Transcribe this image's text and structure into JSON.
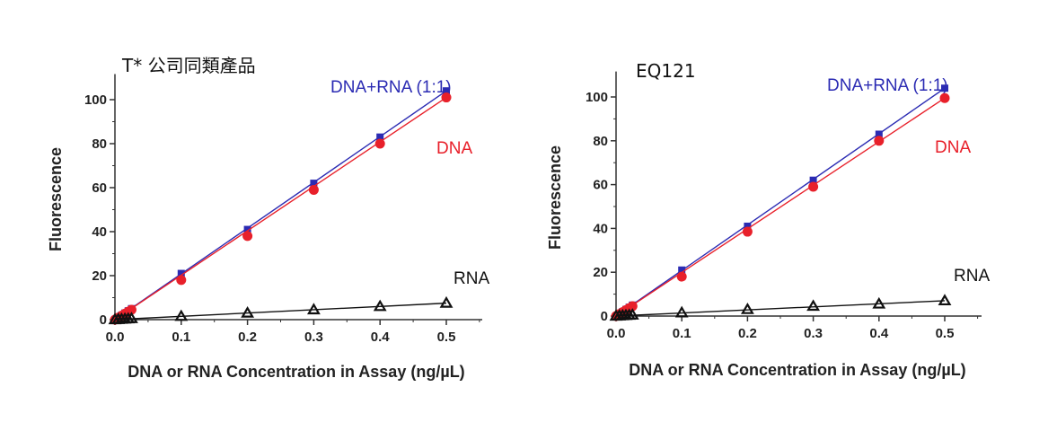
{
  "chart_data": [
    {
      "type": "line",
      "title": "T* 公司同類產品",
      "xlabel": "DNA or RNA Concentration in Assay (ng/µL)",
      "ylabel": "Fluorescence",
      "xlim": [
        0,
        0.55
      ],
      "ylim": [
        0,
        110
      ],
      "xticks": [
        "0.0",
        "0.1",
        "0.2",
        "0.3",
        "0.4",
        "0.5"
      ],
      "yticks": [
        "0",
        "20",
        "40",
        "60",
        "80",
        "100"
      ],
      "x": [
        0,
        0.005,
        0.01,
        0.015,
        0.02,
        0.025,
        0.1,
        0.2,
        0.3,
        0.4,
        0.5
      ],
      "series": [
        {
          "name": "DNA+RNA (1:1)",
          "color": "#2b2bb3",
          "marker": "square",
          "values": [
            0,
            1.0,
            2.0,
            3.0,
            4.0,
            5.0,
            21,
            41,
            62,
            83,
            104
          ]
        },
        {
          "name": "DNA",
          "color": "#e8202a",
          "marker": "circle",
          "values": [
            0,
            0.9,
            1.8,
            2.7,
            3.6,
            4.5,
            18,
            38,
            59,
            80,
            101
          ]
        },
        {
          "name": "RNA",
          "color": "#111111",
          "marker": "triangle",
          "values": [
            0,
            0.1,
            0.2,
            0.3,
            0.4,
            0.5,
            1.5,
            3,
            4.5,
            6,
            7.5
          ]
        }
      ]
    },
    {
      "type": "line",
      "title": "EQ121",
      "xlabel": "DNA or RNA Concentration in Assay (ng/µL)",
      "ylabel": "Fluorescence",
      "xlim": [
        0,
        0.55
      ],
      "ylim": [
        0,
        110
      ],
      "xticks": [
        "0.0",
        "0.1",
        "0.2",
        "0.3",
        "0.4",
        "0.5"
      ],
      "yticks": [
        "0",
        "20",
        "40",
        "60",
        "80",
        "100"
      ],
      "x": [
        0,
        0.005,
        0.01,
        0.015,
        0.02,
        0.025,
        0.1,
        0.2,
        0.3,
        0.4,
        0.5
      ],
      "series": [
        {
          "name": "DNA+RNA (1:1)",
          "color": "#2b2bb3",
          "marker": "square",
          "values": [
            0,
            1.0,
            2.0,
            3.0,
            4.0,
            5.0,
            21,
            41,
            62,
            83,
            104
          ]
        },
        {
          "name": "DNA",
          "color": "#e8202a",
          "marker": "circle",
          "values": [
            0,
            0.9,
            1.8,
            2.7,
            3.6,
            4.5,
            18,
            38.5,
            59,
            80,
            99.5
          ]
        },
        {
          "name": "RNA",
          "color": "#111111",
          "marker": "triangle",
          "values": [
            0,
            0.1,
            0.2,
            0.3,
            0.4,
            0.5,
            1.5,
            3,
            4.5,
            5.5,
            7
          ]
        }
      ]
    }
  ]
}
